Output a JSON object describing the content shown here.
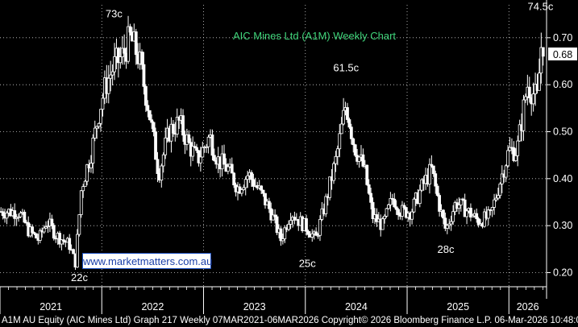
{
  "chart_data": {
    "type": "candlestick",
    "title": "AIC Mines Ltd (A1M) Weekly Chart",
    "ylim": [
      0.17,
      0.77
    ],
    "yticks": [
      0.2,
      0.3,
      0.4,
      0.5,
      0.6,
      0.7
    ],
    "ytick_labels": [
      "0.20",
      "0.30",
      "0.40",
      "0.50",
      "0.60",
      "0.70"
    ],
    "last_price": 0.68,
    "last_price_label": "0.68",
    "x_labels": [
      "2021",
      "2022",
      "2023",
      "2024",
      "2025",
      "2026"
    ],
    "grid": true,
    "anchors": [
      [
        2021.18,
        0.33
      ],
      [
        2021.28,
        0.29
      ],
      [
        2021.38,
        0.27
      ],
      [
        2021.46,
        0.31
      ],
      [
        2021.55,
        0.28
      ],
      [
        2021.68,
        0.26
      ],
      [
        2021.74,
        0.22
      ],
      [
        2021.8,
        0.38
      ],
      [
        2021.9,
        0.46
      ],
      [
        2021.98,
        0.55
      ],
      [
        2022.04,
        0.6
      ],
      [
        2022.12,
        0.64
      ],
      [
        2022.2,
        0.66
      ],
      [
        2022.28,
        0.7
      ],
      [
        2022.36,
        0.66
      ],
      [
        2022.46,
        0.55
      ],
      [
        2022.56,
        0.41
      ],
      [
        2022.66,
        0.5
      ],
      [
        2022.76,
        0.52
      ],
      [
        2022.86,
        0.47
      ],
      [
        2022.94,
        0.44
      ],
      [
        2023.06,
        0.49
      ],
      [
        2023.14,
        0.44
      ],
      [
        2023.24,
        0.42
      ],
      [
        2023.34,
        0.38
      ],
      [
        2023.44,
        0.41
      ],
      [
        2023.56,
        0.37
      ],
      [
        2023.66,
        0.33
      ],
      [
        2023.76,
        0.27
      ],
      [
        2023.86,
        0.33
      ],
      [
        2023.94,
        0.31
      ],
      [
        2024.04,
        0.29
      ],
      [
        2024.1,
        0.27
      ],
      [
        2024.2,
        0.35
      ],
      [
        2024.3,
        0.44
      ],
      [
        2024.4,
        0.56
      ],
      [
        2024.48,
        0.47
      ],
      [
        2024.58,
        0.42
      ],
      [
        2024.66,
        0.32
      ],
      [
        2024.76,
        0.3
      ],
      [
        2024.86,
        0.36
      ],
      [
        2024.94,
        0.33
      ],
      [
        2025.04,
        0.33
      ],
      [
        2025.14,
        0.38
      ],
      [
        2025.24,
        0.42
      ],
      [
        2025.32,
        0.34
      ],
      [
        2025.38,
        0.29
      ],
      [
        2025.48,
        0.35
      ],
      [
        2025.6,
        0.33
      ],
      [
        2025.7,
        0.31
      ],
      [
        2025.82,
        0.32
      ],
      [
        2025.92,
        0.4
      ],
      [
        2026.0,
        0.46
      ],
      [
        2026.08,
        0.46
      ],
      [
        2026.18,
        0.6
      ],
      [
        2026.28,
        0.57
      ],
      [
        2026.32,
        0.69
      ]
    ],
    "annotations": [
      {
        "text": "73c",
        "value": 0.73,
        "date": 2022.12
      },
      {
        "text": "22c",
        "value": 0.22,
        "date": 2021.78
      },
      {
        "text": "61.5c",
        "value": 0.615,
        "date": 2024.4
      },
      {
        "text": "25c",
        "value": 0.25,
        "date": 2024.02
      },
      {
        "text": "28c",
        "value": 0.28,
        "date": 2025.38
      },
      {
        "text": "74.5c",
        "value": 0.745,
        "date": 2026.31
      }
    ]
  },
  "watermark": "www.marketmatters.com.au",
  "footer": "A1M AU Equity (AIC Mines Ltd) Graph 217 Weekly 07MAR2021-06MAR2026 Copyright© 2026 Bloomberg Finance L.P. 06-Mar-2026 10:48:01",
  "colors": {
    "background": "#000000",
    "candle": "#ffffff",
    "title": "#3fd47a",
    "grid": "#ffffff"
  }
}
